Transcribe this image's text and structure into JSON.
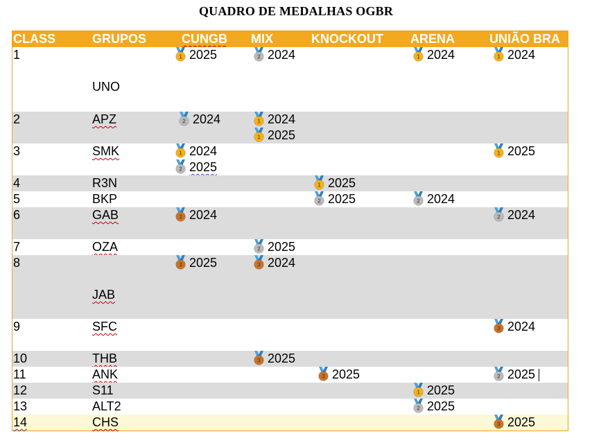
{
  "title": "QUADRO DE MEDALHAS OGBR",
  "headers": {
    "class": "CLASS",
    "grupos": "GRUPOS",
    "cungb": "CUNGB",
    "mix": "MIX",
    "knockout": "KNOCKOUT",
    "arena": "ARENA",
    "uniao": "UNIÃO BRA"
  },
  "colors": {
    "header_bg": "#f4a81f",
    "gold": "#f6b21c",
    "silver": "#b9bcc2",
    "bronze": "#c9742b",
    "ribbon": "#4aa2dc",
    "row_gray": "#dcdcdc",
    "row_highlight": "#fdf8d6"
  },
  "rows": [
    {
      "class": "1",
      "grupo": "UNO",
      "cungb": [
        {
          "medal": "gold",
          "year": "2025"
        }
      ],
      "mix": [
        {
          "medal": "silver",
          "year": "2024"
        }
      ],
      "knockout": [],
      "arena": [
        {
          "medal": "gold",
          "year": "2024"
        }
      ],
      "uniao": [
        {
          "medal": "gold",
          "year": "2024"
        }
      ]
    },
    {
      "class": "2",
      "grupo": "APZ",
      "cungb": [
        {
          "medal": "silver",
          "year": "2024"
        }
      ],
      "mix": [
        {
          "medal": "gold",
          "year": "2024"
        },
        {
          "medal": "gold",
          "year": "2025"
        }
      ],
      "knockout": [],
      "arena": [],
      "uniao": []
    },
    {
      "class": "3",
      "grupo": "SMK",
      "cungb": [
        {
          "medal": "gold",
          "year": "2024"
        },
        {
          "medal": "silver",
          "year": "2025"
        }
      ],
      "mix": [],
      "knockout": [],
      "arena": [],
      "uniao": [
        {
          "medal": "gold",
          "year": "2025"
        }
      ]
    },
    {
      "class": "4",
      "grupo": "R3N",
      "cungb": [],
      "mix": [],
      "knockout": [
        {
          "medal": "gold",
          "year": "2025"
        }
      ],
      "arena": [],
      "uniao": []
    },
    {
      "class": "5",
      "grupo": "BKP",
      "cungb": [],
      "mix": [],
      "knockout": [
        {
          "medal": "silver",
          "year": "2025"
        }
      ],
      "arena": [
        {
          "medal": "silver",
          "year": "2024"
        }
      ],
      "uniao": []
    },
    {
      "class": "6",
      "grupo": "GAB",
      "cungb": [
        {
          "medal": "bronze",
          "year": "2024"
        }
      ],
      "mix": [],
      "knockout": [],
      "arena": [],
      "uniao": [
        {
          "medal": "silver",
          "year": "2024"
        }
      ]
    },
    {
      "class": "7",
      "grupo": "OZA",
      "cungb": [],
      "mix": [
        {
          "medal": "silver",
          "year": "2025"
        }
      ],
      "knockout": [],
      "arena": [],
      "uniao": []
    },
    {
      "class": "8",
      "grupo": "JAB",
      "cungb": [
        {
          "medal": "bronze",
          "year": "2025"
        }
      ],
      "mix": [
        {
          "medal": "bronze",
          "year": "2024"
        }
      ],
      "knockout": [],
      "arena": [],
      "uniao": []
    },
    {
      "class": "9",
      "grupo": "SFC",
      "cungb": [],
      "mix": [],
      "knockout": [],
      "arena": [],
      "uniao": [
        {
          "medal": "bronze",
          "year": "2024"
        }
      ]
    },
    {
      "class": "10",
      "grupo": "THB",
      "cungb": [],
      "mix": [
        {
          "medal": "bronze",
          "year": "2025"
        }
      ],
      "knockout": [],
      "arena": [],
      "uniao": []
    },
    {
      "class": "11",
      "grupo": "ANK",
      "cungb": [],
      "mix": [],
      "knockout": [
        {
          "medal": "bronze",
          "year": "2025"
        }
      ],
      "arena": [],
      "uniao": [
        {
          "medal": "silver",
          "year": "2025"
        }
      ]
    },
    {
      "class": "12",
      "grupo": "S11",
      "cungb": [],
      "mix": [],
      "knockout": [],
      "arena": [
        {
          "medal": "gold",
          "year": "2025"
        }
      ],
      "uniao": []
    },
    {
      "class": "13",
      "grupo": "ALT2",
      "cungb": [],
      "mix": [],
      "knockout": [],
      "arena": [
        {
          "medal": "silver",
          "year": "2025"
        }
      ],
      "uniao": []
    },
    {
      "class": "14",
      "grupo": "CHS",
      "cungb": [],
      "mix": [],
      "knockout": [],
      "arena": [],
      "uniao": [
        {
          "medal": "bronze",
          "year": "2025"
        }
      ]
    }
  ]
}
